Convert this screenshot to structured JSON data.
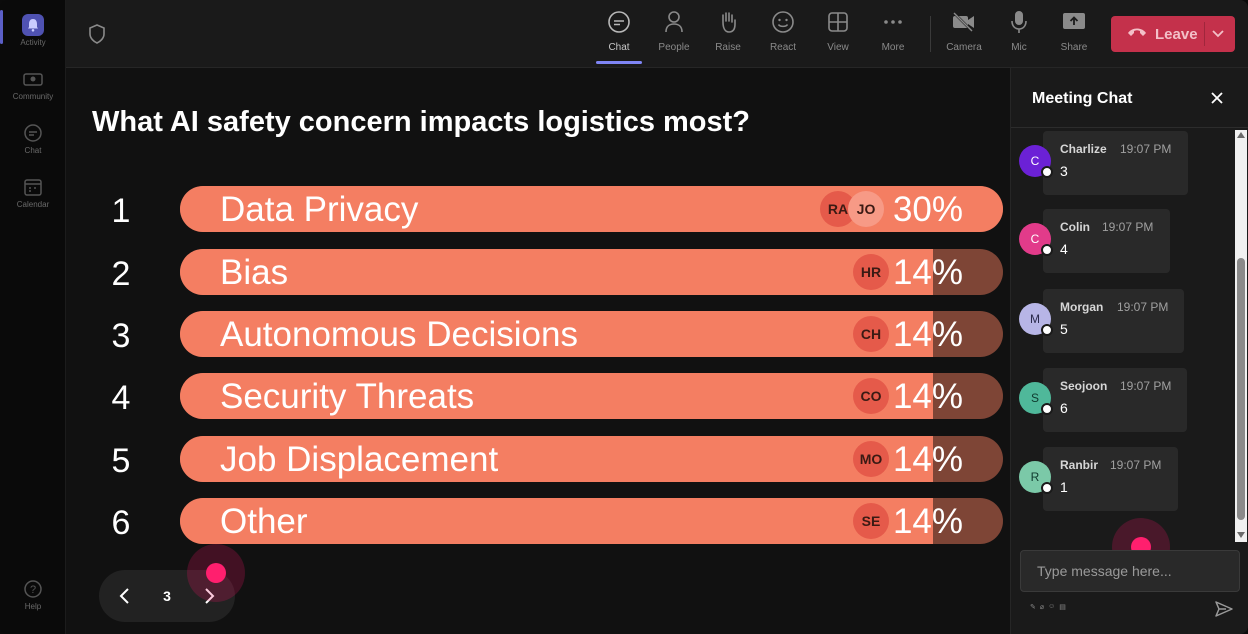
{
  "rail": {
    "items": [
      {
        "label": "Activity",
        "icon": "bell-icon",
        "active": true
      },
      {
        "label": "Community",
        "icon": "community-icon"
      },
      {
        "label": "Chat",
        "icon": "chat-icon"
      },
      {
        "label": "Calendar",
        "icon": "calendar-icon"
      },
      {
        "label": "Help",
        "icon": "help-icon"
      }
    ]
  },
  "topbar": {
    "buttons": [
      {
        "label": "Chat",
        "icon": "chat-icon",
        "active": true
      },
      {
        "label": "People",
        "icon": "people-icon"
      },
      {
        "label": "Raise",
        "icon": "raise-hand-icon"
      },
      {
        "label": "React",
        "icon": "smiley-icon"
      },
      {
        "label": "View",
        "icon": "grid-icon"
      },
      {
        "label": "More",
        "icon": "more-icon"
      },
      {
        "label": "Camera",
        "icon": "camera-off-icon"
      },
      {
        "label": "Mic",
        "icon": "mic-icon"
      },
      {
        "label": "Share",
        "icon": "share-icon"
      }
    ],
    "leave_label": "Leave"
  },
  "poll": {
    "question": "What AI safety concern impacts logistics most?",
    "options": [
      {
        "num": "1",
        "label": "Data Privacy",
        "percent": 30,
        "percent_label": "30%",
        "voters": [
          "RA",
          "JO"
        ]
      },
      {
        "num": "2",
        "label": "Bias",
        "percent": 14,
        "percent_label": "14%",
        "voters": [
          "HR"
        ]
      },
      {
        "num": "3",
        "label": "Autonomous Decisions",
        "percent": 14,
        "percent_label": "14%",
        "voters": [
          "CH"
        ]
      },
      {
        "num": "4",
        "label": "Security Threats",
        "percent": 14,
        "percent_label": "14%",
        "voters": [
          "CO"
        ]
      },
      {
        "num": "5",
        "label": "Job Displacement",
        "percent": 14,
        "percent_label": "14%",
        "voters": [
          "MO"
        ]
      },
      {
        "num": "6",
        "label": "Other",
        "percent": 14,
        "percent_label": "14%",
        "voters": [
          "SE"
        ]
      }
    ],
    "page": "3"
  },
  "chat": {
    "title": "Meeting Chat",
    "messages": [
      {
        "initial": "C",
        "name": "Charlize",
        "time": "19:07 PM",
        "text": "3",
        "avatar_color": "#6b21d6",
        "avatar_text": "#ffffff"
      },
      {
        "initial": "C",
        "name": "Colin",
        "time": "19:07 PM",
        "text": "4",
        "avatar_color": "#e23b8a",
        "avatar_text": "#ffffff"
      },
      {
        "initial": "M",
        "name": "Morgan",
        "time": "19:07 PM",
        "text": "5",
        "avatar_color": "#b7b5e6",
        "avatar_text": "#2a2a4a"
      },
      {
        "initial": "S",
        "name": "Seojoon",
        "time": "19:07 PM",
        "text": "6",
        "avatar_color": "#4fb89a",
        "avatar_text": "#0f3a2e"
      },
      {
        "initial": "R",
        "name": "Ranbir",
        "time": "19:07 PM",
        "text": "1",
        "avatar_color": "#7bc9a8",
        "avatar_text": "#0f3a2e"
      }
    ],
    "input_placeholder": "Type message here..."
  },
  "colors": {
    "accent": "#7f85f5",
    "leave": "#c4314b",
    "bar_fill": "#f47e62",
    "bar_track": "#7e4536",
    "cursor": "#ff1f6e"
  }
}
